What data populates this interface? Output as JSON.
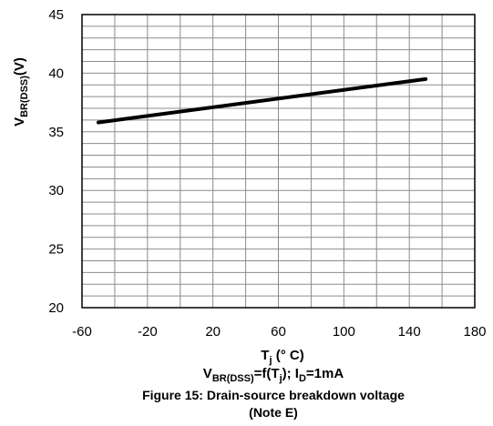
{
  "chart_data": {
    "type": "line",
    "x": [
      -50,
      150
    ],
    "series": [
      {
        "values": [
          35.8,
          39.5
        ],
        "color": "#000000"
      }
    ],
    "xlim": [
      -60,
      180
    ],
    "ylim": [
      20,
      45
    ],
    "x_ticks": [
      -60,
      -20,
      20,
      60,
      100,
      140,
      180
    ],
    "y_ticks": [
      20,
      25,
      30,
      35,
      40,
      45
    ],
    "x_minor_step": 20,
    "y_minor_step": 1,
    "grid": true,
    "xlabel": {
      "main": "T",
      "sub": "j",
      "rest": " (° C)"
    },
    "ylabel": {
      "main": "V",
      "sub": "BR(DSS)",
      "rest": "(V)"
    },
    "annotation": {
      "main": "V",
      "sub1": "BR(DSS)",
      "part2": "=f(T",
      "sub2": "j",
      "part3": "); I",
      "sub3": "D",
      "part4": "=1mA"
    },
    "caption_line1": "Figure 15: Drain-source breakdown voltage",
    "caption_line2": "(Note E)"
  },
  "colors": {
    "grid": "#8c8c8c",
    "frame": "#000000",
    "line": "#000000"
  }
}
